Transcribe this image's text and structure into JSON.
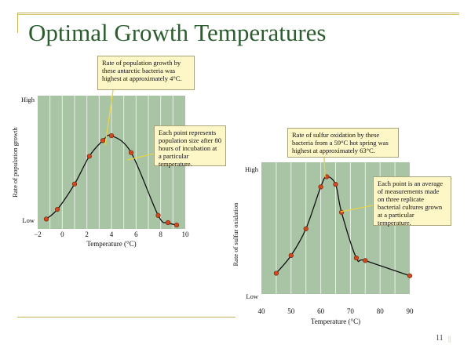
{
  "slide": {
    "title": "Optimal Growth Temperatures",
    "page_number": "11",
    "page_mark": "||"
  },
  "colors": {
    "plot_bg": "#a8c4a5",
    "grid": "#ffffff",
    "point": "#d2491f",
    "title": "#2c5d2f",
    "callout_bg": "#fdf6c6"
  },
  "callouts": {
    "left_top": "Rate of population growth by these antarctic bacteria was highest at approximately 4°C.",
    "left_mid": "Each point represents population size after 80 hours of incubation at a particular temperature.",
    "right_top": "Rate of sulfur oxidation by these bacteria from a 59°C hot spring was highest at approximately 63°C.",
    "right_mid": "Each point is an average of measurements made on three replicate bacterial cultures grown at a particular temperature."
  },
  "chart_data": [
    {
      "type": "line",
      "xlabel": "Temperature (°C)",
      "ylabel": "Rate of population growth",
      "y_tick_labels": [
        "High",
        "Low"
      ],
      "xlim": [
        -2,
        10
      ],
      "x_ticks": [
        "−2",
        "0",
        "2",
        "4",
        "6",
        "8",
        "10"
      ],
      "x_tick_values": [
        -2,
        0,
        2,
        4,
        6,
        8,
        10
      ],
      "grid": true,
      "points": [
        {
          "x": -1.3,
          "y": 0.03
        },
        {
          "x": -0.4,
          "y": 0.11
        },
        {
          "x": 1.0,
          "y": 0.32
        },
        {
          "x": 2.2,
          "y": 0.55
        },
        {
          "x": 3.3,
          "y": 0.68
        },
        {
          "x": 4.0,
          "y": 0.72
        },
        {
          "x": 5.6,
          "y": 0.58
        },
        {
          "x": 7.8,
          "y": 0.06
        },
        {
          "x": 8.6,
          "y": 0.0
        },
        {
          "x": 9.3,
          "y": -0.02
        }
      ]
    },
    {
      "type": "line",
      "xlabel": "Temperature (°C)",
      "ylabel": "Rate of sulfur oxidation",
      "y_tick_labels": [
        "High",
        "Low"
      ],
      "xlim": [
        40,
        90
      ],
      "x_ticks": [
        "40",
        "50",
        "60",
        "70",
        "80",
        "90"
      ],
      "x_tick_values": [
        40,
        50,
        60,
        70,
        80,
        90
      ],
      "grid": true,
      "points": [
        {
          "x": 45,
          "y": 0.12
        },
        {
          "x": 50,
          "y": 0.26
        },
        {
          "x": 55,
          "y": 0.47
        },
        {
          "x": 60,
          "y": 0.8
        },
        {
          "x": 62,
          "y": 0.88
        },
        {
          "x": 65,
          "y": 0.82
        },
        {
          "x": 67,
          "y": 0.6
        },
        {
          "x": 72,
          "y": 0.24
        },
        {
          "x": 75,
          "y": 0.22
        },
        {
          "x": 90,
          "y": 0.1
        }
      ]
    }
  ]
}
